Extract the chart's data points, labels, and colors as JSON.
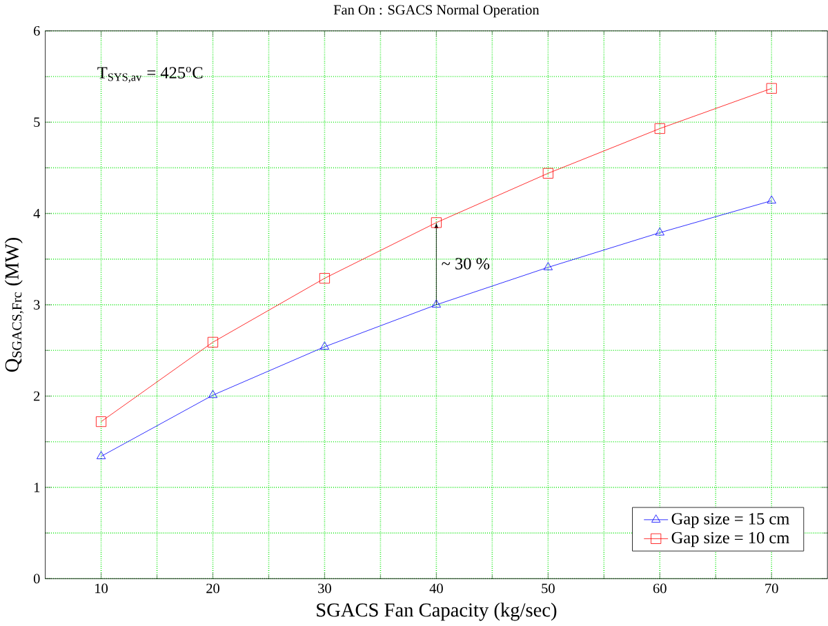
{
  "chart_data": {
    "type": "line",
    "title": "Fan On : SGACS Normal Operation",
    "xlabel": "SGACS Fan Capacity (kg/sec)",
    "ylabel": "Q$_{SGACS,Frc}$ (MW)",
    "x": [
      10,
      20,
      30,
      40,
      50,
      60,
      70
    ],
    "series": [
      {
        "name": "Gap size = 15 cm",
        "color": "#0000ff",
        "marker": "triangle",
        "values": [
          1.34,
          2.01,
          2.54,
          3.0,
          3.41,
          3.79,
          4.14
        ]
      },
      {
        "name": "Gap size = 10 cm",
        "color": "#ff0000",
        "marker": "square",
        "values": [
          1.72,
          2.59,
          3.29,
          3.9,
          4.44,
          4.93,
          5.37
        ]
      }
    ],
    "xlim": [
      5,
      75
    ],
    "xticks": [
      10,
      20,
      30,
      40,
      50,
      60,
      70
    ],
    "ylim": [
      0,
      6
    ],
    "yticks": [
      0,
      1,
      2,
      3,
      4,
      5,
      6
    ],
    "grid": true,
    "legend": "bottom right",
    "line_style": "solid",
    "annotations": [
      "T$_{SYS,av}$ = 425$^{o}$C",
      "~ 30 %"
    ]
  }
}
